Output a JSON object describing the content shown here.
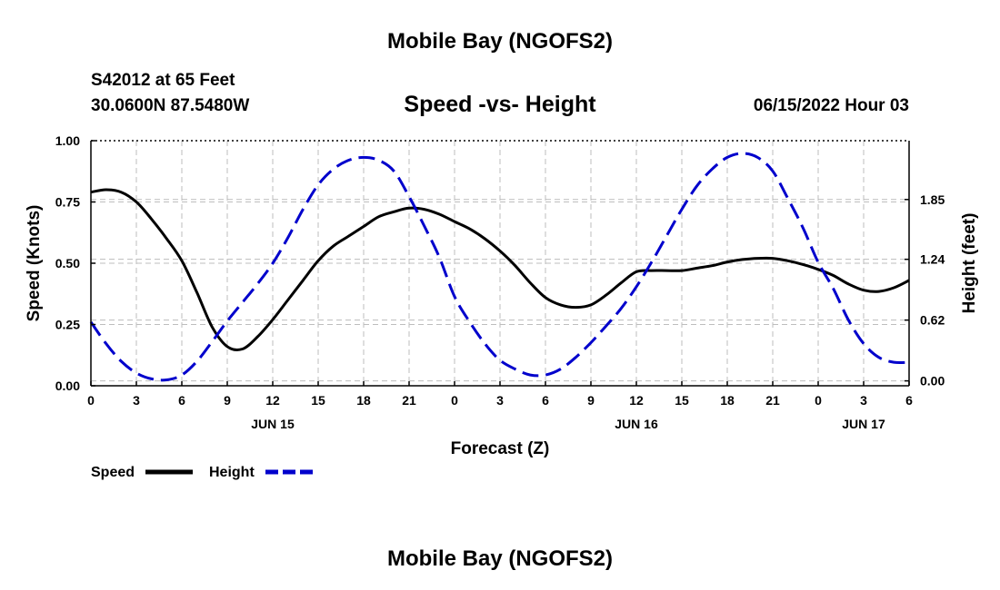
{
  "page": {
    "title_top": "Mobile Bay (NGOFS2)",
    "title_bottom": "Mobile Bay (NGOFS2)",
    "station": "S42012 at 65 Feet",
    "coords": "30.0600N  87.5480W",
    "datetime": "06/15/2022 Hour 03"
  },
  "chart_data": {
    "type": "line",
    "title": "Speed -vs- Height",
    "xlabel": "Forecast (Z)",
    "ylabel": "Speed (Knots)",
    "y2label": "Height (feet)",
    "xlim": [
      0,
      54
    ],
    "ylim": [
      0,
      1.0
    ],
    "y2lim": [
      -0.05,
      2.45
    ],
    "x_tick_values": [
      0,
      3,
      6,
      9,
      12,
      15,
      18,
      21,
      24,
      27,
      30,
      33,
      36,
      39,
      42,
      45,
      48,
      51,
      54
    ],
    "x_tick_labels": [
      "0",
      "3",
      "6",
      "9",
      "12",
      "15",
      "18",
      "21",
      "0",
      "3",
      "6",
      "9",
      "12",
      "15",
      "18",
      "21",
      "0",
      "3",
      "6"
    ],
    "date_labels": [
      {
        "x": 12,
        "label": "JUN 15"
      },
      {
        "x": 36,
        "label": "JUN 16"
      },
      {
        "x": 51,
        "label": "JUN 17"
      }
    ],
    "y_ticks": [
      0.0,
      0.25,
      0.5,
      0.75,
      1.0
    ],
    "y_tick_labels": [
      "0.00",
      "0.25",
      "0.50",
      "0.75",
      "1.00"
    ],
    "y2_ticks": [
      0.0,
      0.62,
      1.24,
      1.85
    ],
    "y2_tick_labels": [
      "0.00",
      "0.62",
      "1.24",
      "1.85"
    ],
    "grid": true,
    "legend_placement": "bottom-left",
    "series": [
      {
        "name": "Speed",
        "axis": "left",
        "color": "#000000",
        "dash": "solid",
        "x": [
          0,
          1,
          2,
          3,
          4,
          5,
          6,
          7,
          8,
          9,
          10,
          11,
          12,
          13,
          14,
          15,
          16,
          17,
          18,
          19,
          20,
          21,
          22,
          23,
          24,
          25,
          26,
          27,
          28,
          29,
          30,
          31,
          32,
          33,
          34,
          35,
          36,
          37,
          38,
          39,
          40,
          41,
          42,
          43,
          44,
          45,
          46,
          47,
          48,
          49,
          50,
          51,
          52,
          53,
          54
        ],
        "values": [
          0.79,
          0.8,
          0.79,
          0.75,
          0.68,
          0.6,
          0.51,
          0.38,
          0.24,
          0.16,
          0.15,
          0.2,
          0.27,
          0.35,
          0.43,
          0.51,
          0.57,
          0.61,
          0.65,
          0.69,
          0.71,
          0.725,
          0.72,
          0.7,
          0.67,
          0.64,
          0.6,
          0.55,
          0.49,
          0.42,
          0.36,
          0.33,
          0.32,
          0.33,
          0.37,
          0.42,
          0.465,
          0.47,
          0.47,
          0.47,
          0.48,
          0.49,
          0.505,
          0.515,
          0.52,
          0.52,
          0.51,
          0.495,
          0.475,
          0.45,
          0.415,
          0.39,
          0.385,
          0.4,
          0.43
        ]
      },
      {
        "name": "Height",
        "axis": "right",
        "color": "#0000cc",
        "dash": "dashed",
        "x": [
          0,
          1,
          2,
          3,
          4,
          5,
          6,
          7,
          8,
          9,
          10,
          11,
          12,
          13,
          14,
          15,
          16,
          17,
          18,
          19,
          20,
          21,
          22,
          23,
          24,
          25,
          26,
          27,
          28,
          29,
          30,
          31,
          32,
          33,
          34,
          35,
          36,
          37,
          38,
          39,
          40,
          41,
          42,
          43,
          44,
          45,
          46,
          47,
          48,
          49,
          50,
          51,
          52,
          53,
          54
        ],
        "values": [
          0.6,
          0.38,
          0.2,
          0.08,
          0.02,
          0.01,
          0.06,
          0.2,
          0.4,
          0.61,
          0.8,
          0.99,
          1.2,
          1.46,
          1.75,
          2.0,
          2.16,
          2.25,
          2.28,
          2.25,
          2.14,
          1.88,
          1.58,
          1.26,
          0.86,
          0.6,
          0.38,
          0.21,
          0.12,
          0.06,
          0.06,
          0.12,
          0.24,
          0.39,
          0.56,
          0.74,
          0.96,
          1.21,
          1.48,
          1.75,
          1.99,
          2.16,
          2.28,
          2.32,
          2.28,
          2.14,
          1.86,
          1.56,
          1.21,
          0.94,
          0.62,
          0.38,
          0.24,
          0.19,
          0.19
        ]
      }
    ]
  }
}
